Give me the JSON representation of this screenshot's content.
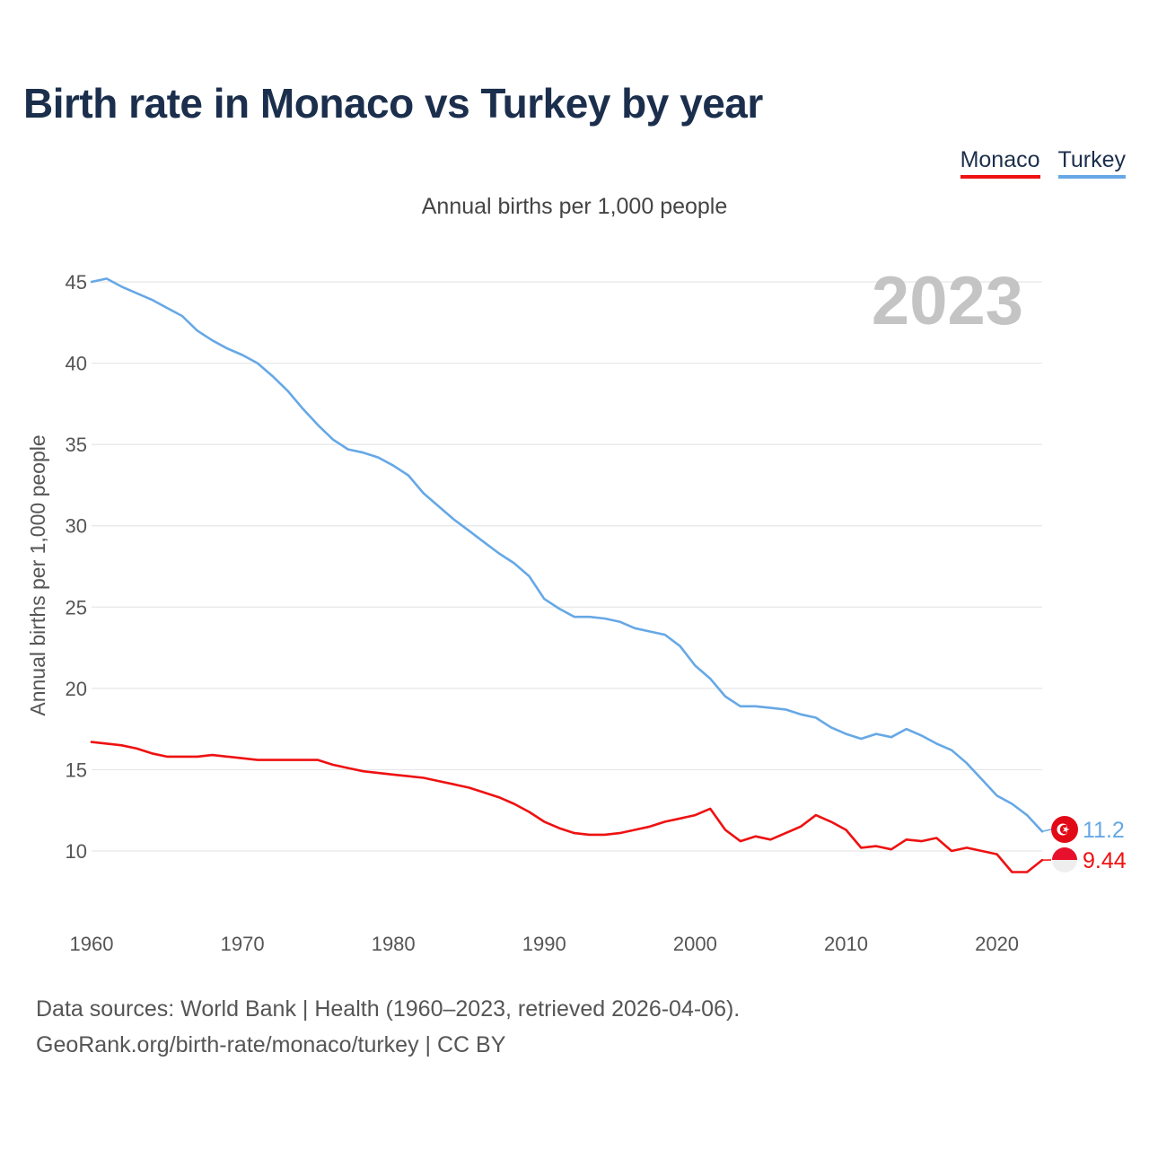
{
  "title": "Birth rate in Monaco vs Turkey by year",
  "subtitle": "Annual births per 1,000 people",
  "legend": {
    "monaco": "Monaco",
    "turkey": "Turkey"
  },
  "colors": {
    "monaco": "#ee1111",
    "turkey": "#66a8e6",
    "title": "#1b2f4d",
    "grid": "#e6e6e6"
  },
  "current_year_label": "2023",
  "footer": {
    "line1": "Data sources: World Bank | Health (1960–2023, retrieved 2026-04-06).",
    "line2": "GeoRank.org/birth-rate/monaco/turkey | CC BY"
  },
  "chart_data": {
    "type": "line",
    "title": "Birth rate in Monaco vs Turkey by year",
    "subtitle": "Annual births per 1,000 people",
    "xlabel": "",
    "ylabel": "Annual births per 1,000 people",
    "xlim": [
      1960,
      2023
    ],
    "ylim": [
      10,
      45
    ],
    "x_ticks": [
      1960,
      1970,
      1980,
      1990,
      2000,
      2010,
      2020
    ],
    "y_ticks": [
      10,
      15,
      20,
      25,
      30,
      35,
      40,
      45
    ],
    "grid": true,
    "legend_position": "top-right",
    "x": [
      1960,
      1961,
      1962,
      1963,
      1964,
      1965,
      1966,
      1967,
      1968,
      1969,
      1970,
      1971,
      1972,
      1973,
      1974,
      1975,
      1976,
      1977,
      1978,
      1979,
      1980,
      1981,
      1982,
      1983,
      1984,
      1985,
      1986,
      1987,
      1988,
      1989,
      1990,
      1991,
      1992,
      1993,
      1994,
      1995,
      1996,
      1997,
      1998,
      1999,
      2000,
      2001,
      2002,
      2003,
      2004,
      2005,
      2006,
      2007,
      2008,
      2009,
      2010,
      2011,
      2012,
      2013,
      2014,
      2015,
      2016,
      2017,
      2018,
      2019,
      2020,
      2021,
      2022,
      2023
    ],
    "series": [
      {
        "name": "Monaco",
        "color": "#ee1111",
        "end_label": "9.44",
        "values": [
          16.7,
          16.6,
          16.5,
          16.3,
          16.0,
          15.8,
          15.8,
          15.8,
          15.9,
          15.8,
          15.7,
          15.6,
          15.6,
          15.6,
          15.6,
          15.6,
          15.3,
          15.1,
          14.9,
          14.8,
          14.7,
          14.6,
          14.5,
          14.3,
          14.1,
          13.9,
          13.6,
          13.3,
          12.9,
          12.4,
          11.8,
          11.4,
          11.1,
          11.0,
          11.0,
          11.1,
          11.3,
          11.5,
          11.8,
          12.0,
          12.2,
          12.6,
          11.3,
          10.6,
          10.9,
          10.7,
          11.1,
          11.5,
          12.2,
          11.8,
          11.3,
          10.2,
          10.3,
          10.1,
          10.7,
          10.6,
          10.8,
          10.0,
          10.2,
          10.0,
          9.8,
          8.7,
          8.7,
          9.44
        ]
      },
      {
        "name": "Turkey",
        "color": "#66a8e6",
        "end_label": "11.2",
        "values": [
          45.0,
          45.2,
          44.7,
          44.3,
          43.9,
          43.4,
          42.9,
          42.0,
          41.4,
          40.9,
          40.5,
          40.0,
          39.2,
          38.3,
          37.2,
          36.2,
          35.3,
          34.7,
          34.5,
          34.2,
          33.7,
          33.1,
          32.0,
          31.2,
          30.4,
          29.7,
          29.0,
          28.3,
          27.7,
          26.9,
          25.5,
          24.9,
          24.4,
          24.4,
          24.3,
          24.1,
          23.7,
          23.5,
          23.3,
          22.6,
          21.4,
          20.6,
          19.5,
          18.9,
          18.9,
          18.8,
          18.7,
          18.4,
          18.2,
          17.6,
          17.2,
          16.9,
          17.2,
          17.0,
          17.5,
          17.1,
          16.6,
          16.2,
          15.4,
          14.4,
          13.4,
          12.9,
          12.2,
          11.2
        ]
      }
    ]
  }
}
